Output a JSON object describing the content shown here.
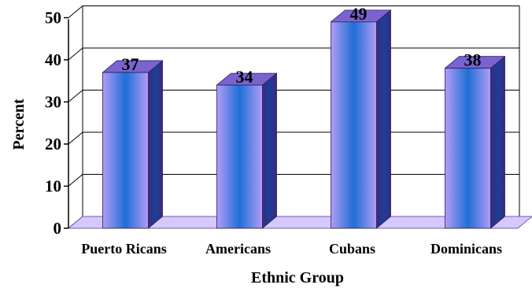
{
  "chart_data": {
    "type": "bar",
    "categories": [
      "Puerto Ricans",
      "Americans",
      "Cubans",
      "Dominicans"
    ],
    "values": [
      37,
      34,
      49,
      38
    ],
    "data_labels": [
      "37",
      "34",
      "49",
      "38"
    ],
    "yticks": [
      "0",
      "10",
      "20",
      "30",
      "40",
      "50"
    ],
    "xlabel": "Ethnic Group",
    "ylabel": "Percent",
    "ylim": [
      0,
      50
    ],
    "grid": true,
    "style": "3d-column",
    "colors": {
      "bar_edge": "#b19cf5",
      "bar_center": "#1f6fd6",
      "side_dark": "#3a2a7a",
      "side_mid": "#1b3f9a",
      "top": "#7b63cf",
      "floor": "#d6c8ff",
      "grid": "#000000"
    }
  }
}
